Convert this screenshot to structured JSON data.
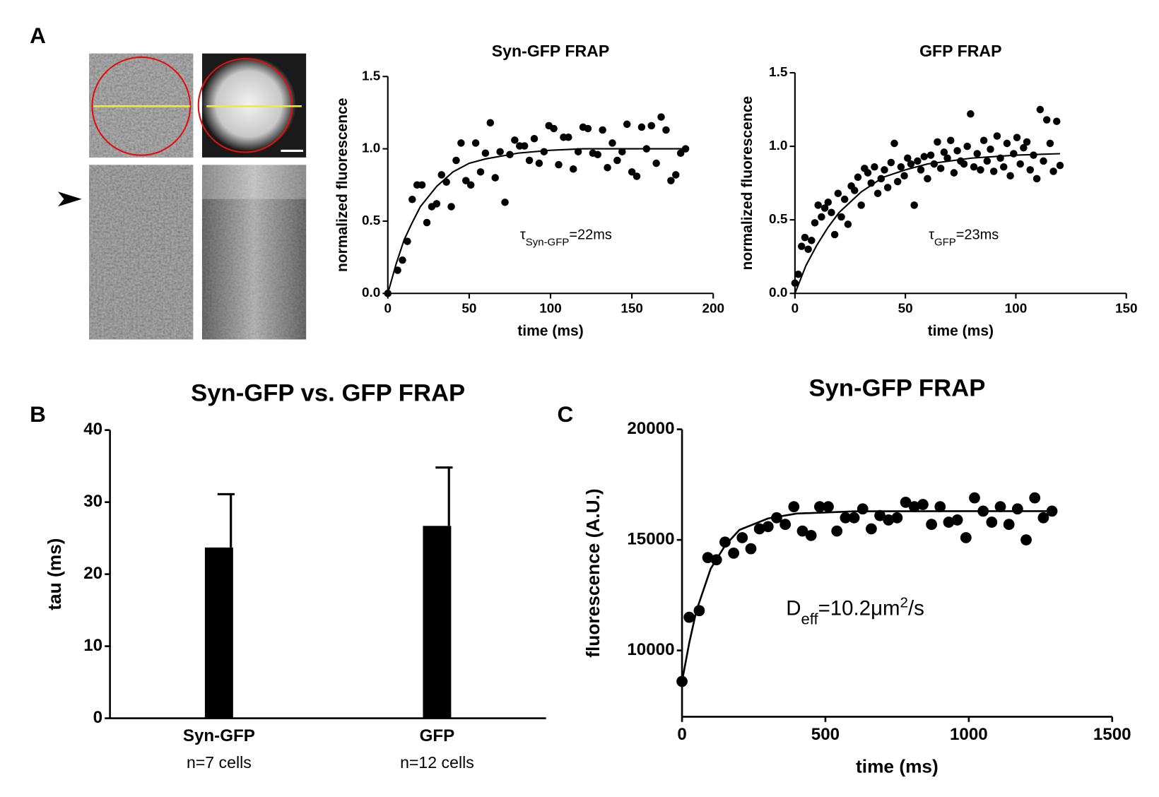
{
  "panel_labels": [
    "A",
    "B",
    "C"
  ],
  "chart_data": [
    {
      "type": "scatter",
      "title": "Syn-GFP FRAP",
      "x_label": "time (ms)",
      "y_label": "normalized fluorescence",
      "x": [
        0,
        6,
        9,
        12,
        15,
        18,
        21,
        24,
        27,
        30,
        33,
        36,
        39,
        42,
        45,
        48,
        51,
        54,
        57,
        60,
        63,
        66,
        69,
        72,
        75,
        78,
        81,
        84,
        87,
        90,
        93,
        96,
        99,
        102,
        105,
        108,
        111,
        114,
        117,
        120,
        123,
        126,
        129,
        132,
        135,
        138,
        141,
        144,
        147,
        150,
        153,
        156,
        159,
        162,
        165,
        168,
        171,
        174,
        177,
        180,
        183
      ],
      "values": [
        0.0,
        0.16,
        0.23,
        0.36,
        0.65,
        0.75,
        0.75,
        0.49,
        0.6,
        0.62,
        0.82,
        0.77,
        0.6,
        0.92,
        1.04,
        0.78,
        0.75,
        1.04,
        0.84,
        0.97,
        1.18,
        0.8,
        0.98,
        0.63,
        0.96,
        1.06,
        1.02,
        1.02,
        0.92,
        1.07,
        0.9,
        0.98,
        1.16,
        1.14,
        0.89,
        1.08,
        1.08,
        0.86,
        0.98,
        1.15,
        1.14,
        0.97,
        0.96,
        1.13,
        0.87,
        1.04,
        0.92,
        0.98,
        1.17,
        0.84,
        0.81,
        1.15,
        1.0,
        1.16,
        0.9,
        1.22,
        1.13,
        0.78,
        0.82,
        0.97,
        1.0
      ],
      "fit": {
        "x": [
          0,
          5,
          10,
          15,
          20,
          30,
          40,
          50,
          60,
          80,
          100,
          120,
          140,
          160,
          183
        ],
        "values": [
          0,
          0.2,
          0.37,
          0.49,
          0.6,
          0.74,
          0.84,
          0.9,
          0.93,
          0.97,
          0.99,
          1.0,
          1.0,
          1.0,
          1.0
        ]
      },
      "color": "#000000",
      "xlim": [
        0,
        200
      ],
      "xticks": [
        0,
        50,
        100,
        150,
        200
      ],
      "ylim": [
        0,
        1.5
      ],
      "yticks": [
        {
          "value": 0,
          "label": "0.0"
        },
        0.5,
        {
          "value": 1,
          "label": "1.0"
        },
        1.5
      ],
      "annotation": [
        {
          "text": "τ"
        },
        {
          "text": "Syn-GFP",
          "sub": true
        },
        {
          "text": "=22ms"
        }
      ],
      "grid": false
    },
    {
      "type": "scatter",
      "title": "GFP FRAP",
      "x_label": "time (ms)",
      "y_label": "normalized fluorescence",
      "x": [
        0,
        1.5,
        3,
        4.5,
        6,
        7.5,
        9,
        10.5,
        12,
        13.5,
        15,
        16.5,
        18,
        19.5,
        21,
        22.5,
        24,
        25.5,
        27,
        28.5,
        30,
        31.5,
        33,
        34.5,
        36,
        37.5,
        39,
        40.5,
        42,
        43.5,
        45,
        46.5,
        48,
        49.5,
        51,
        52.5,
        54,
        55.5,
        57,
        58.5,
        60,
        61.5,
        63,
        64.5,
        66,
        67.5,
        69,
        70.5,
        72,
        73.5,
        75,
        76.5,
        78,
        79.5,
        81,
        82.5,
        84,
        85.5,
        87,
        88.5,
        90,
        91.5,
        93,
        94.5,
        96,
        97.5,
        99,
        100.5,
        102,
        103.5,
        105,
        106.5,
        108,
        109.5,
        111,
        112.5,
        114,
        115.5,
        117,
        118.5,
        120
      ],
      "values": [
        0.07,
        0.13,
        0.32,
        0.38,
        0.3,
        0.36,
        0.48,
        0.6,
        0.52,
        0.58,
        0.62,
        0.55,
        0.4,
        0.68,
        0.52,
        0.64,
        0.47,
        0.73,
        0.7,
        0.79,
        0.6,
        0.85,
        0.82,
        0.75,
        0.86,
        0.68,
        0.78,
        0.84,
        0.72,
        0.89,
        1.02,
        0.76,
        0.86,
        0.8,
        0.92,
        0.88,
        0.6,
        0.9,
        0.84,
        0.93,
        0.78,
        0.94,
        0.88,
        1.03,
        0.85,
        0.96,
        0.92,
        1.04,
        0.82,
        0.97,
        0.9,
        0.88,
        1.0,
        1.22,
        0.86,
        0.95,
        0.84,
        1.04,
        0.9,
        0.98,
        0.83,
        1.07,
        0.92,
        0.86,
        1.02,
        0.8,
        0.95,
        1.06,
        0.88,
        0.99,
        1.03,
        0.84,
        0.94,
        0.78,
        1.25,
        0.9,
        1.18,
        1.02,
        0.83,
        1.17,
        0.87
      ],
      "fit": {
        "x": [
          0,
          5,
          10,
          15,
          20,
          30,
          40,
          50,
          60,
          80,
          100,
          120
        ],
        "values": [
          0,
          0.19,
          0.33,
          0.45,
          0.55,
          0.69,
          0.79,
          0.84,
          0.88,
          0.92,
          0.94,
          0.95
        ]
      },
      "color": "#000000",
      "xlim": [
        0,
        150
      ],
      "xticks": [
        0,
        50,
        100,
        150
      ],
      "ylim": [
        0,
        1.5
      ],
      "yticks": [
        {
          "value": 0,
          "label": "0.0"
        },
        0.5,
        {
          "value": 1,
          "label": "1.0"
        },
        1.5
      ],
      "annotation": [
        {
          "text": "τ"
        },
        {
          "text": "GFP",
          "sub": true
        },
        {
          "text": "=23ms"
        }
      ],
      "grid": false
    },
    {
      "type": "bar",
      "title": "Syn-GFP vs. GFP FRAP",
      "y_label": "tau (ms)",
      "categories": [
        "Syn-GFP",
        "GFP"
      ],
      "category_notes": [
        "n=7 cells",
        "n=12 cells"
      ],
      "values": [
        23.7,
        26.7
      ],
      "errors": [
        7.4,
        8.1
      ],
      "color": "#000000",
      "ylim": [
        0,
        40
      ],
      "yticks": [
        0,
        10,
        20,
        30,
        40
      ],
      "grid": false
    },
    {
      "type": "scatter",
      "title": "Syn-GFP FRAP",
      "x_label": "time (ms)",
      "y_label": "fluorescence (A.U.)",
      "x": [
        0,
        25,
        60,
        90,
        120,
        150,
        180,
        210,
        240,
        270,
        300,
        330,
        360,
        390,
        420,
        450,
        480,
        510,
        540,
        570,
        600,
        630,
        660,
        690,
        720,
        750,
        780,
        810,
        840,
        870,
        900,
        930,
        960,
        990,
        1020,
        1050,
        1080,
        1110,
        1140,
        1170,
        1200,
        1230,
        1260,
        1290
      ],
      "values": [
        8600,
        11500,
        11800,
        14200,
        14100,
        14900,
        14400,
        15100,
        14600,
        15500,
        15600,
        16000,
        15700,
        16500,
        15400,
        15200,
        16500,
        16500,
        15400,
        16000,
        16000,
        16400,
        15500,
        16100,
        15900,
        16000,
        16700,
        16500,
        16600,
        15700,
        16500,
        15800,
        15900,
        15100,
        16900,
        16300,
        15800,
        16500,
        15700,
        16400,
        15000,
        16900,
        16000,
        16300
      ],
      "fit": {
        "x": [
          0,
          25,
          50,
          100,
          150,
          200,
          300,
          400,
          600,
          1000,
          1290
        ],
        "values": [
          8600,
          10330,
          11790,
          13700,
          14740,
          15450,
          15970,
          16190,
          16290,
          16300,
          16300
        ]
      },
      "color": "#000000",
      "xlim": [
        0,
        1500
      ],
      "xticks": [
        0,
        500,
        1000,
        1500
      ],
      "ylim": [
        7000,
        20000
      ],
      "yticks": [
        10000,
        15000,
        20000
      ],
      "annotation": [
        {
          "text": "D"
        },
        {
          "text": "eff",
          "sub": true
        },
        {
          "text": "=10.2μm"
        },
        {
          "text": "2",
          "sup": true
        },
        {
          "text": "/s"
        }
      ],
      "grid": false
    }
  ]
}
